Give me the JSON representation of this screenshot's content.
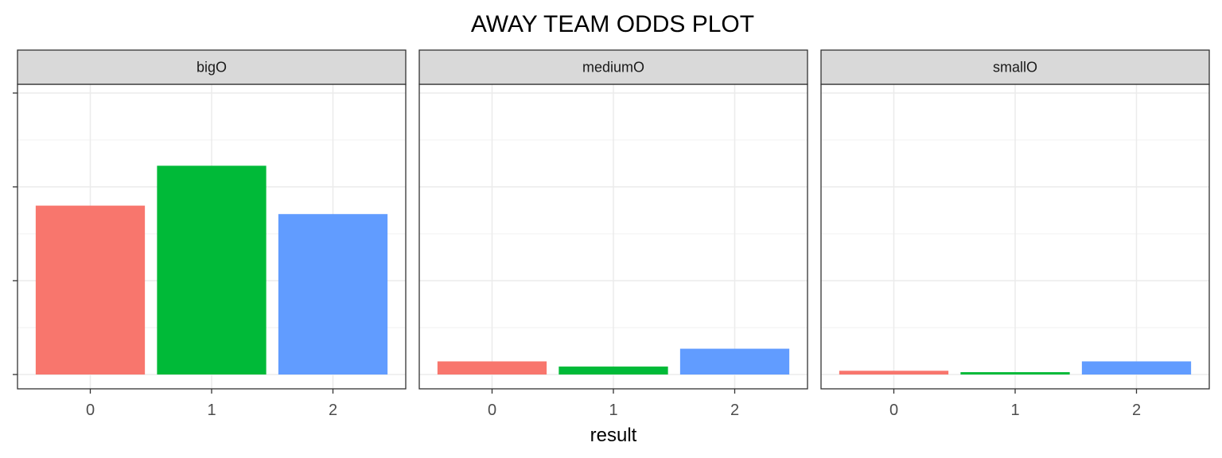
{
  "chart_data": {
    "type": "bar",
    "title": "AWAY TEAM ODDS PLOT",
    "xlabel": "result",
    "ylabel": "",
    "ylim": [
      0,
      6.2
    ],
    "y_tick_labels_visible": false,
    "grid": true,
    "legend": "none",
    "categories": [
      "0",
      "1",
      "2"
    ],
    "colors": [
      "#F8766D",
      "#00BA38",
      "#619CFF"
    ],
    "panels": [
      {
        "name": "bigO",
        "values": [
          3.6,
          4.45,
          3.42
        ]
      },
      {
        "name": "mediumO",
        "values": [
          0.28,
          0.17,
          0.55
        ]
      },
      {
        "name": "smallO",
        "values": [
          0.08,
          0.05,
          0.28
        ]
      }
    ]
  }
}
